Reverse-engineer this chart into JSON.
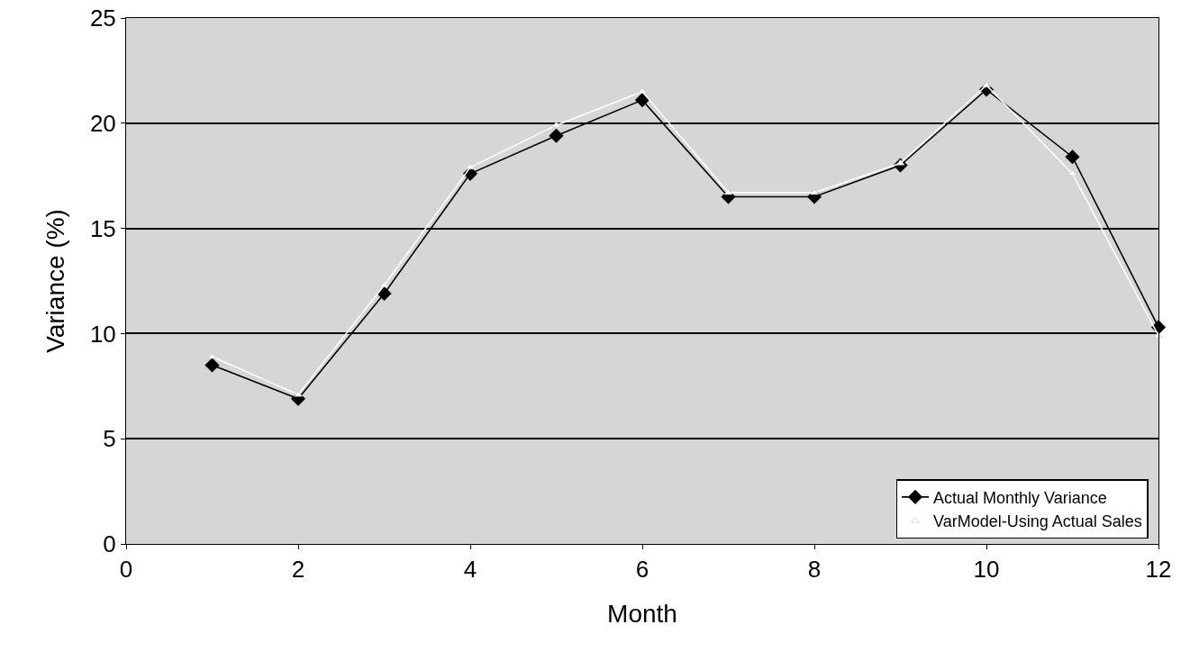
{
  "chart_data": {
    "type": "line",
    "xlabel": "Month",
    "ylabel": "Variance (%)",
    "x": [
      1,
      2,
      3,
      4,
      5,
      6,
      7,
      8,
      9,
      10,
      11,
      12
    ],
    "series": [
      {
        "name": "Actual Monthly Variance",
        "color": "#000000",
        "marker": "diamond",
        "values": [
          8.5,
          6.9,
          11.9,
          17.6,
          19.4,
          21.1,
          16.5,
          16.5,
          18.0,
          21.6,
          18.4,
          10.3
        ]
      },
      {
        "name": "VarModel-Using Actual Sales",
        "color": "#ffffff",
        "marker": "triangle",
        "values": [
          8.9,
          7.1,
          12.3,
          17.9,
          19.9,
          21.5,
          16.7,
          16.7,
          18.1,
          21.8,
          17.6,
          9.9
        ]
      }
    ],
    "xlim": [
      0,
      12
    ],
    "xticks": [
      0,
      2,
      4,
      6,
      8,
      10,
      12
    ],
    "ylim": [
      0,
      25
    ],
    "yticks": [
      0,
      5,
      10,
      15,
      20,
      25
    ],
    "grid": "y",
    "legend": "bottom right"
  }
}
